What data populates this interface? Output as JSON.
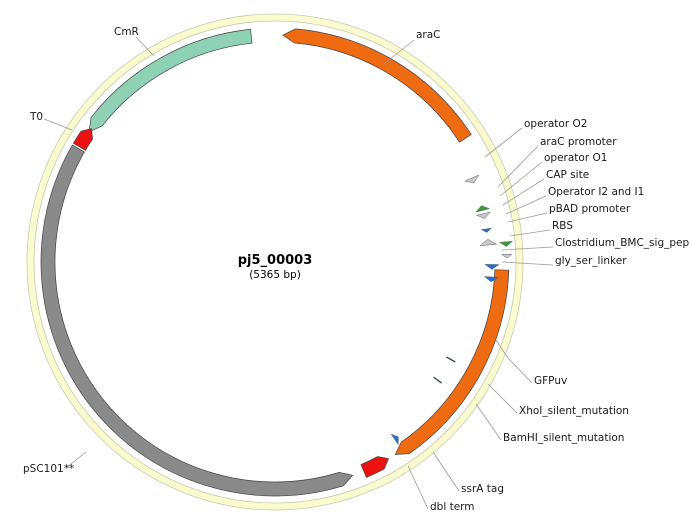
{
  "plasmid": {
    "name": "pj5_00003",
    "length_label": "(5365 bp)"
  },
  "colors": {
    "backbone_fill": "#fbfbd0",
    "backbone_stroke": "#c8c8a0",
    "orange": "#ee6b12",
    "teal": "#8ed1b5",
    "gray": "#8a8a8a",
    "red": "#ee1111",
    "green": "#3a9a3a",
    "blue": "#1f6fd6",
    "light_gray": "#c8c8c8"
  },
  "features": [
    {
      "id": "cmr",
      "label": "CmR"
    },
    {
      "id": "arac",
      "label": "araC"
    },
    {
      "id": "op_o2",
      "label": "operator O2"
    },
    {
      "id": "arac_prom",
      "label": "araC promoter"
    },
    {
      "id": "op_o1",
      "label": "operator O1"
    },
    {
      "id": "cap",
      "label": "CAP site"
    },
    {
      "id": "op_i2i1",
      "label": "Operator I2 and I1"
    },
    {
      "id": "pbad",
      "label": "pBAD promoter"
    },
    {
      "id": "rbs",
      "label": "RBS"
    },
    {
      "id": "clost",
      "label": "Clostridium_BMC_sig_pep"
    },
    {
      "id": "glyser",
      "label": "gly_ser_linker"
    },
    {
      "id": "gfpuv",
      "label": "GFPuv"
    },
    {
      "id": "xhoi",
      "label": "XhoI_silent_mutation"
    },
    {
      "id": "bamhi",
      "label": "BamHI_silent_mutation"
    },
    {
      "id": "ssra",
      "label": "ssrA tag"
    },
    {
      "id": "dbl",
      "label": "dbl term"
    },
    {
      "id": "psc101",
      "label": "pSC101**"
    },
    {
      "id": "t0",
      "label": "T0"
    }
  ]
}
